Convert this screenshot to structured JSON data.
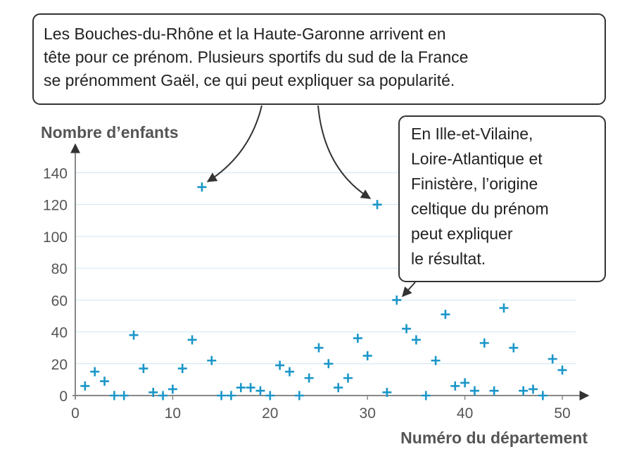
{
  "chart_data": {
    "type": "scatter",
    "x_label": "Numéro du département",
    "y_label": "Nombre d’enfants",
    "x": [
      1,
      2,
      3,
      4,
      5,
      6,
      7,
      8,
      9,
      10,
      11,
      12,
      13,
      14,
      15,
      16,
      17,
      18,
      19,
      20,
      21,
      22,
      23,
      24,
      25,
      26,
      27,
      28,
      29,
      30,
      31,
      32,
      33,
      34,
      35,
      36,
      37,
      38,
      39,
      40,
      41,
      42,
      43,
      44,
      45,
      46,
      47,
      48,
      49,
      50
    ],
    "values": [
      6,
      15,
      9,
      0,
      0,
      38,
      17,
      2,
      0,
      4,
      17,
      35,
      131,
      22,
      0,
      0,
      5,
      5,
      3,
      0,
      19,
      15,
      0,
      11,
      30,
      20,
      5,
      11,
      36,
      25,
      120,
      2,
      60,
      42,
      35,
      0,
      22,
      51,
      6,
      8,
      3,
      33,
      3,
      55,
      30,
      3,
      4,
      0,
      23,
      16
    ],
    "color": "#1a96c8",
    "xlim": [
      0,
      52.6
    ],
    "ylim": [
      0,
      157
    ],
    "xticks": [
      0,
      10,
      20,
      30,
      40,
      50
    ],
    "yticks": [
      0,
      20,
      40,
      60,
      80,
      100,
      120,
      140
    ],
    "grid": true,
    "annotations": [
      {
        "lines": [
          "Les Bouches-du-Rhône et la Haute-Garonne arrivent en",
          "tête pour ce prénom. Plusieurs sportifs du sud de la France",
          "se prénomment Gaël, ce qui peut expliquer sa popularité."
        ]
      },
      {
        "lines": [
          "En Ille-et-Vilaine,",
          "Loire-Atlantique et",
          "Finistère, l’origine",
          "celtique du prénom",
          "peut expliquer",
          "le résultat."
        ]
      }
    ]
  }
}
